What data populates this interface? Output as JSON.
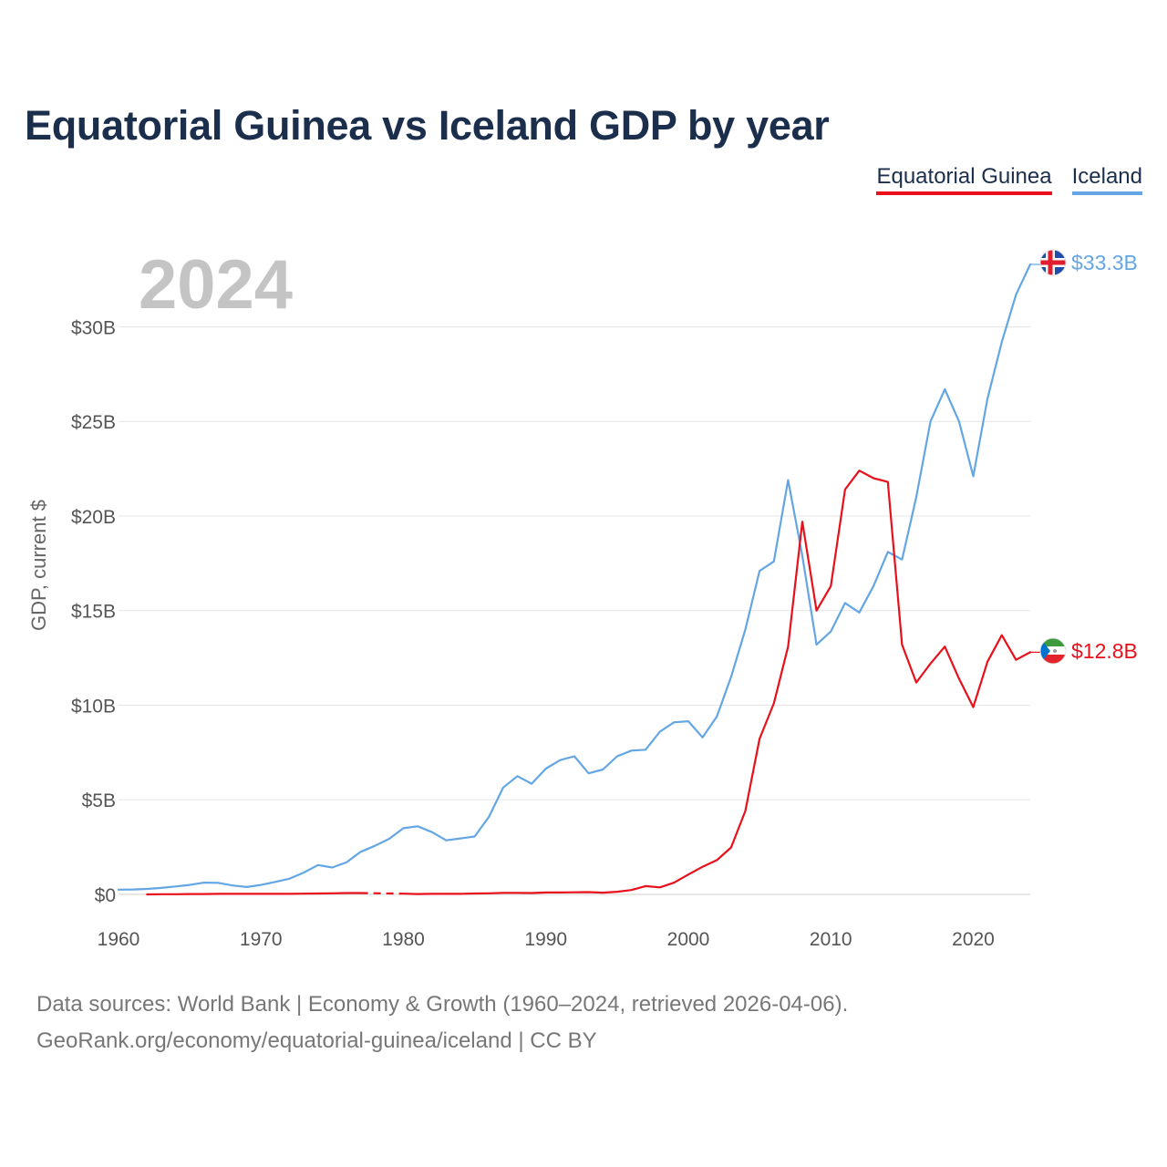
{
  "title": "Equatorial Guinea vs Iceland GDP by year",
  "legend": {
    "equatorial_guinea": "Equatorial Guinea",
    "iceland": "Iceland"
  },
  "source_line1": "Data sources: World Bank | Economy & Growth (1960–2024, retrieved 2026-04-06).",
  "source_line2": "GeoRank.org/economy/equatorial-guinea/iceland | CC BY",
  "colors": {
    "equatorial_guinea": "#e8101a",
    "iceland": "#64a6e4",
    "title": "#1b2f4d"
  },
  "chart_data": {
    "type": "line",
    "title": "Equatorial Guinea vs Iceland GDP by year",
    "xlabel": "",
    "ylabel": "GDP, current $",
    "year_display": "2024",
    "xlim": [
      1960,
      2024
    ],
    "ylim": [
      0,
      33.3
    ],
    "x_ticks": [
      1960,
      1970,
      1980,
      1990,
      2000,
      2010,
      2020
    ],
    "y_ticks": [
      {
        "value": 0,
        "label": "$0"
      },
      {
        "value": 5,
        "label": "$5B"
      },
      {
        "value": 10,
        "label": "$10B"
      },
      {
        "value": 15,
        "label": "$15B"
      },
      {
        "value": 20,
        "label": "$20B"
      },
      {
        "value": 25,
        "label": "$25B"
      },
      {
        "value": 30,
        "label": "$30B"
      }
    ],
    "grid": true,
    "units": "billion USD",
    "series": [
      {
        "name": "Iceland",
        "color": "#64a6e4",
        "end_label": "$33.3B",
        "points": [
          [
            1960,
            0.25
          ],
          [
            1961,
            0.26
          ],
          [
            1962,
            0.29
          ],
          [
            1963,
            0.34
          ],
          [
            1964,
            0.42
          ],
          [
            1965,
            0.5
          ],
          [
            1966,
            0.62
          ],
          [
            1967,
            0.61
          ],
          [
            1968,
            0.47
          ],
          [
            1969,
            0.39
          ],
          [
            1970,
            0.5
          ],
          [
            1971,
            0.66
          ],
          [
            1972,
            0.83
          ],
          [
            1973,
            1.15
          ],
          [
            1974,
            1.55
          ],
          [
            1975,
            1.42
          ],
          [
            1976,
            1.69
          ],
          [
            1977,
            2.25
          ],
          [
            1978,
            2.57
          ],
          [
            1979,
            2.94
          ],
          [
            1980,
            3.5
          ],
          [
            1981,
            3.6
          ],
          [
            1982,
            3.29
          ],
          [
            1983,
            2.86
          ],
          [
            1984,
            2.96
          ],
          [
            1985,
            3.06
          ],
          [
            1986,
            4.1
          ],
          [
            1987,
            5.65
          ],
          [
            1988,
            6.25
          ],
          [
            1989,
            5.85
          ],
          [
            1990,
            6.65
          ],
          [
            1991,
            7.1
          ],
          [
            1992,
            7.3
          ],
          [
            1993,
            6.4
          ],
          [
            1994,
            6.6
          ],
          [
            1995,
            7.3
          ],
          [
            1996,
            7.6
          ],
          [
            1997,
            7.65
          ],
          [
            1998,
            8.6
          ],
          [
            1999,
            9.1
          ],
          [
            2000,
            9.15
          ],
          [
            2001,
            8.3
          ],
          [
            2002,
            9.4
          ],
          [
            2003,
            11.5
          ],
          [
            2004,
            14.0
          ],
          [
            2005,
            17.1
          ],
          [
            2006,
            17.6
          ],
          [
            2007,
            21.9
          ],
          [
            2008,
            17.9
          ],
          [
            2009,
            13.2
          ],
          [
            2010,
            13.9
          ],
          [
            2011,
            15.4
          ],
          [
            2012,
            14.9
          ],
          [
            2013,
            16.3
          ],
          [
            2014,
            18.1
          ],
          [
            2015,
            17.7
          ],
          [
            2016,
            21.0
          ],
          [
            2017,
            25.0
          ],
          [
            2018,
            26.7
          ],
          [
            2019,
            25.0
          ],
          [
            2020,
            22.1
          ],
          [
            2021,
            26.2
          ],
          [
            2022,
            29.2
          ],
          [
            2023,
            31.7
          ],
          [
            2024,
            33.3
          ]
        ]
      },
      {
        "name": "Equatorial Guinea",
        "color": "#e8101a",
        "end_label": "$12.8B",
        "segments": [
          [
            [
              1962,
              0.0
            ],
            [
              1963,
              0.01
            ],
            [
              1964,
              0.01
            ],
            [
              1965,
              0.02
            ],
            [
              1966,
              0.02
            ],
            [
              1967,
              0.03
            ],
            [
              1968,
              0.03
            ],
            [
              1969,
              0.03
            ],
            [
              1970,
              0.03
            ],
            [
              1971,
              0.03
            ],
            [
              1972,
              0.03
            ],
            [
              1973,
              0.04
            ],
            [
              1974,
              0.05
            ],
            [
              1975,
              0.06
            ],
            [
              1976,
              0.07
            ],
            [
              1977,
              0.07
            ]
          ],
          [
            [
              1980,
              0.04
            ],
            [
              1981,
              0.02
            ],
            [
              1982,
              0.03
            ],
            [
              1983,
              0.03
            ],
            [
              1984,
              0.03
            ],
            [
              1985,
              0.05
            ],
            [
              1986,
              0.06
            ],
            [
              1987,
              0.08
            ],
            [
              1988,
              0.08
            ],
            [
              1989,
              0.07
            ],
            [
              1990,
              0.1
            ],
            [
              1991,
              0.1
            ],
            [
              1992,
              0.11
            ],
            [
              1993,
              0.12
            ],
            [
              1994,
              0.09
            ],
            [
              1995,
              0.14
            ],
            [
              1996,
              0.23
            ],
            [
              1997,
              0.44
            ],
            [
              1998,
              0.37
            ],
            [
              1999,
              0.62
            ],
            [
              2000,
              1.05
            ],
            [
              2001,
              1.46
            ],
            [
              2002,
              1.81
            ],
            [
              2003,
              2.48
            ],
            [
              2004,
              4.41
            ],
            [
              2005,
              8.22
            ],
            [
              2006,
              10.1
            ],
            [
              2007,
              13.1
            ],
            [
              2008,
              19.7
            ],
            [
              2009,
              15.0
            ],
            [
              2010,
              16.3
            ],
            [
              2011,
              21.4
            ],
            [
              2012,
              22.4
            ],
            [
              2013,
              22.0
            ],
            [
              2014,
              21.8
            ],
            [
              2015,
              13.2
            ],
            [
              2016,
              11.2
            ],
            [
              2017,
              12.2
            ],
            [
              2018,
              13.1
            ],
            [
              2019,
              11.4
            ],
            [
              2020,
              9.9
            ],
            [
              2021,
              12.3
            ],
            [
              2022,
              13.7
            ],
            [
              2023,
              12.4
            ],
            [
              2024,
              12.8
            ]
          ]
        ]
      }
    ]
  }
}
